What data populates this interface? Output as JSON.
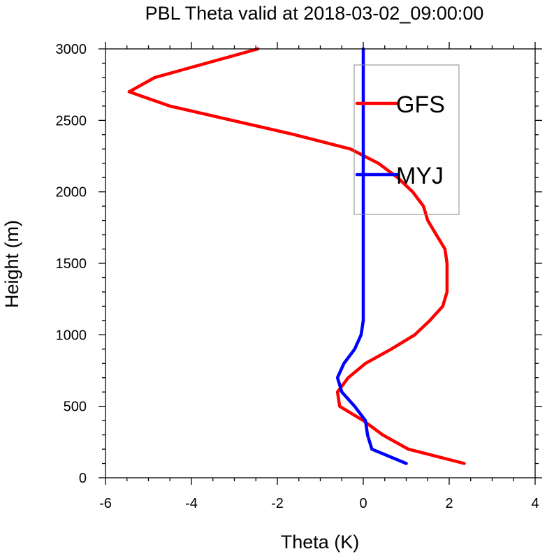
{
  "chart_data": {
    "type": "line",
    "title": "PBL Theta valid at 2018-03-02_09:00:00",
    "xlabel": "Theta (K)",
    "ylabel": "Height (m)",
    "xlim": [
      -6,
      4
    ],
    "ylim": [
      0,
      3000
    ],
    "x_ticks": [
      -6,
      -4,
      -2,
      0,
      2,
      4
    ],
    "y_ticks": [
      0,
      500,
      1000,
      1500,
      2000,
      2500,
      3000
    ],
    "grid": false,
    "legend_position": "top-right",
    "series": [
      {
        "name": "GFS",
        "color": "#ff0000",
        "points": [
          [
            2.35,
            100
          ],
          [
            1.05,
            200
          ],
          [
            0.45,
            300
          ],
          [
            0.0,
            400
          ],
          [
            -0.55,
            500
          ],
          [
            -0.6,
            600
          ],
          [
            -0.35,
            700
          ],
          [
            0.05,
            800
          ],
          [
            0.65,
            900
          ],
          [
            1.2,
            1000
          ],
          [
            1.55,
            1100
          ],
          [
            1.85,
            1200
          ],
          [
            1.95,
            1300
          ],
          [
            1.95,
            1400
          ],
          [
            1.95,
            1500
          ],
          [
            1.9,
            1600
          ],
          [
            1.7,
            1700
          ],
          [
            1.5,
            1800
          ],
          [
            1.4,
            1900
          ],
          [
            1.15,
            2000
          ],
          [
            0.8,
            2100
          ],
          [
            0.35,
            2200
          ],
          [
            -0.3,
            2300
          ],
          [
            -1.6,
            2400
          ],
          [
            -4.5,
            2600
          ],
          [
            -5.45,
            2700
          ],
          [
            -4.85,
            2800
          ],
          [
            -2.45,
            3000
          ]
        ]
      },
      {
        "name": "MYJ",
        "color": "#0000ff",
        "points": [
          [
            1.0,
            100
          ],
          [
            0.2,
            200
          ],
          [
            0.1,
            300
          ],
          [
            0.05,
            400
          ],
          [
            -0.2,
            500
          ],
          [
            -0.5,
            600
          ],
          [
            -0.6,
            700
          ],
          [
            -0.45,
            800
          ],
          [
            -0.2,
            900
          ],
          [
            -0.05,
            1000
          ],
          [
            0.0,
            1100
          ],
          [
            0.0,
            1200
          ],
          [
            0.0,
            1500
          ],
          [
            0.0,
            2000
          ],
          [
            0.0,
            2500
          ],
          [
            0.0,
            3000
          ]
        ]
      }
    ]
  }
}
